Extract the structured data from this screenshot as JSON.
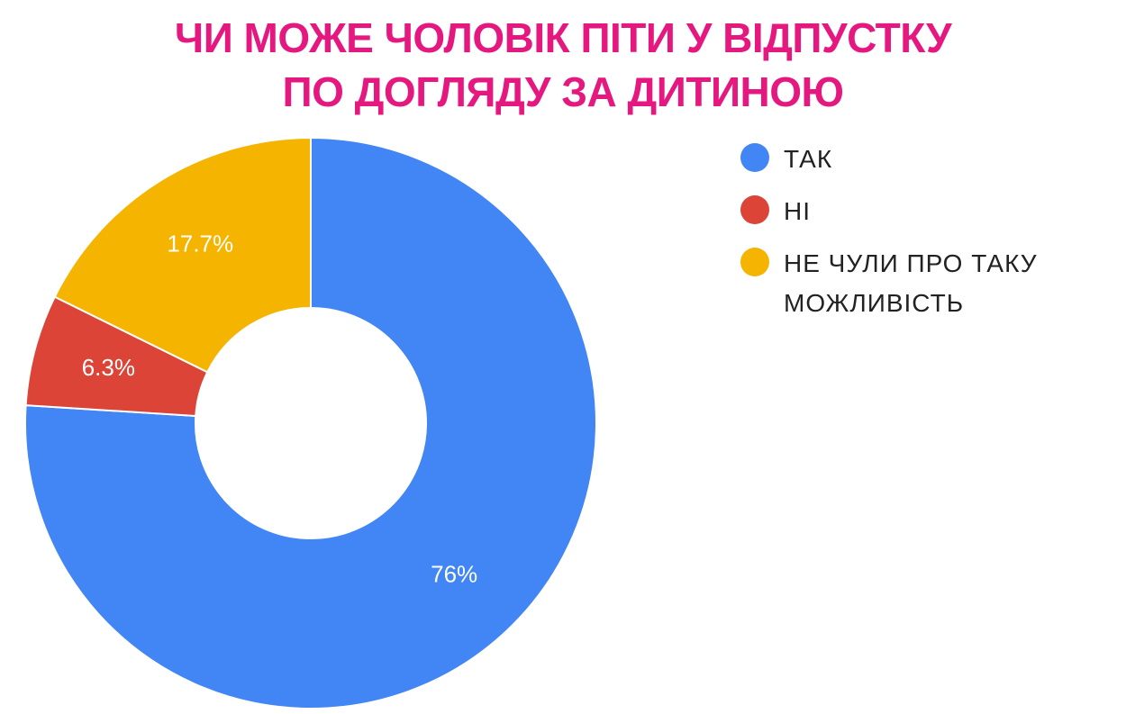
{
  "chart_data": {
    "type": "pie",
    "title_lines": [
      "ЧИ МОЖЕ ЧОЛОВІК ПІТИ У ВІДПУСТКУ",
      "ПО ДОГЛЯДУ ЗА ДИТИНОЮ"
    ],
    "categories": [
      "ТАК",
      "НІ",
      "НЕ ЧУЛИ ПРО ТАКУ МОЖЛИВІСТЬ"
    ],
    "values": [
      76,
      6.3,
      17.7
    ],
    "data_labels": [
      "76%",
      "6.3%",
      "17.7%"
    ],
    "colors": [
      "#4285f4",
      "#db4437",
      "#f4b400"
    ],
    "donut": true,
    "legend_position": "right"
  }
}
